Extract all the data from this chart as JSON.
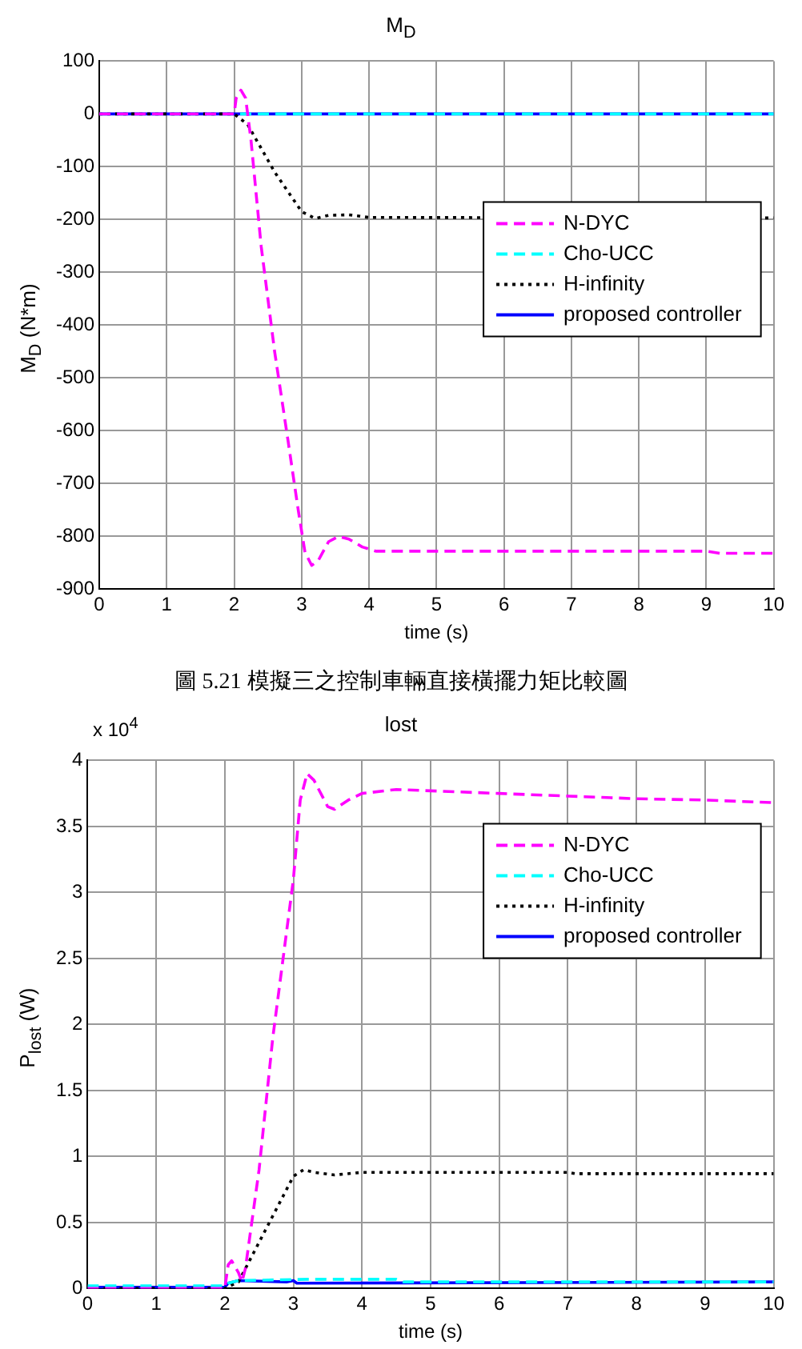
{
  "chart_data": [
    {
      "type": "line",
      "title": "M$_{D}$",
      "xlabel": "time (s)",
      "ylabel": "M$_{D}$ (N*m)",
      "xlim": [
        0,
        10
      ],
      "xticks": [
        0,
        1,
        2,
        3,
        4,
        5,
        6,
        7,
        8,
        9,
        10
      ],
      "ylim": [
        -900,
        100
      ],
      "yticks": [
        -900,
        -800,
        -700,
        -600,
        -500,
        -400,
        -300,
        -200,
        -100,
        0,
        100
      ],
      "grid": true,
      "legend": "right",
      "annotations": [
        "圖 5.21 模擬三之控制車輛直接橫擺力矩比較圖"
      ],
      "series": [
        {
          "name": "N-DYC",
          "color": "#ff00ff",
          "line_style": "dashed",
          "x": [
            0,
            2,
            2.03,
            2.1,
            2.17,
            2.25,
            2.4,
            2.6,
            2.8,
            2.95,
            3.05,
            3.15,
            3.25,
            3.4,
            3.55,
            3.7,
            3.9,
            4.1,
            9,
            9.2,
            10
          ],
          "values": [
            0,
            0,
            30,
            45,
            30,
            -50,
            -250,
            -450,
            -620,
            -750,
            -830,
            -855,
            -845,
            -810,
            -800,
            -805,
            -820,
            -828,
            -828,
            -832,
            -832
          ]
        },
        {
          "name": "Cho-UCC",
          "color": "#00ffff",
          "line_style": "dashed",
          "x": [
            0,
            10
          ],
          "values": [
            0,
            0
          ]
        },
        {
          "name": "H-infinity",
          "color": "#000000",
          "line_style": "dotted",
          "x": [
            0,
            2,
            2.2,
            2.6,
            3.0,
            3.2,
            3.4,
            3.7,
            4.0,
            10
          ],
          "values": [
            0,
            0,
            -20,
            -110,
            -185,
            -198,
            -192,
            -191,
            -196,
            -197
          ]
        },
        {
          "name": "proposed controller",
          "color": "#0000ff",
          "line_style": "solid",
          "x": [
            0,
            10
          ],
          "values": [
            0,
            0
          ]
        }
      ]
    },
    {
      "type": "line",
      "title": "lost",
      "xlabel": "time (s)",
      "ylabel": "P$_{lost}$ (W)",
      "xlim": [
        0,
        10
      ],
      "xticks": [
        0,
        1,
        2,
        3,
        4,
        5,
        6,
        7,
        8,
        9,
        10
      ],
      "ylim": [
        0,
        4
      ],
      "yticks": [
        0,
        0.5,
        1,
        1.5,
        2,
        2.5,
        3,
        3.5,
        4
      ],
      "grid": true,
      "legend": "top right",
      "annotations": [
        "x 10$^{4}$"
      ],
      "series": [
        {
          "name": "N-DYC",
          "color": "#ff00ff",
          "line_style": "dashed",
          "x": [
            0,
            2,
            2.05,
            2.1,
            2.2,
            2.25,
            2.3,
            2.5,
            2.7,
            2.9,
            3.0,
            3.1,
            3.2,
            3.3,
            3.5,
            3.6,
            3.8,
            4.0,
            4.5,
            5,
            6,
            7,
            8,
            9,
            10
          ],
          "values": [
            0,
            0,
            0.18,
            0.21,
            0.12,
            0.05,
            0.15,
            0.9,
            1.9,
            2.7,
            3.1,
            3.7,
            3.9,
            3.85,
            3.65,
            3.63,
            3.7,
            3.75,
            3.78,
            3.77,
            3.75,
            3.73,
            3.71,
            3.7,
            3.68
          ]
        },
        {
          "name": "Cho-UCC",
          "color": "#00ffff",
          "line_style": "dashed",
          "x": [
            0,
            2,
            2.05,
            2.2,
            3.2,
            4.5,
            4.6,
            10
          ],
          "values": [
            0.02,
            0.02,
            0.04,
            0.06,
            0.07,
            0.07,
            0.05,
            0.05
          ]
        },
        {
          "name": "H-infinity",
          "color": "#000000",
          "line_style": "dotted",
          "x": [
            0,
            2,
            2.2,
            2.5,
            2.8,
            3.0,
            3.15,
            3.3,
            3.6,
            4,
            7,
            7.1,
            10
          ],
          "values": [
            0,
            0,
            0.05,
            0.35,
            0.65,
            0.85,
            0.9,
            0.88,
            0.86,
            0.88,
            0.88,
            0.87,
            0.87
          ]
        },
        {
          "name": "proposed controller",
          "color": "#0000ff",
          "line_style": "solid",
          "x": [
            0,
            2,
            2.05,
            2.2,
            2.9,
            3,
            3.05,
            10
          ],
          "values": [
            0.01,
            0.01,
            0.04,
            0.06,
            0.05,
            0.06,
            0.04,
            0.05
          ]
        }
      ]
    }
  ]
}
